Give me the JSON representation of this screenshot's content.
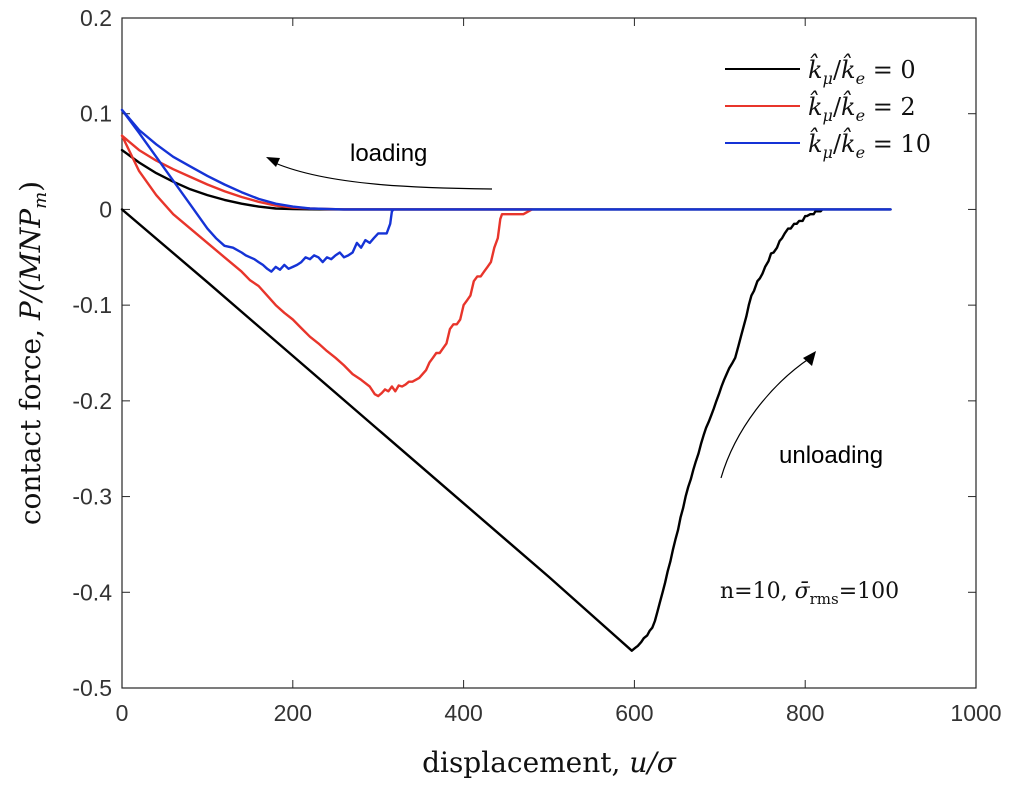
{
  "chart_data": {
    "type": "line",
    "xlabel": "displacement, u/σ",
    "ylabel": "contact force, P/(MNP_m)",
    "xlim": [
      0,
      1000
    ],
    "ylim": [
      -0.5,
      0.2
    ],
    "x_ticks": [
      0,
      200,
      400,
      600,
      800,
      1000
    ],
    "y_ticks": [
      0.2,
      0.1,
      0,
      -0.1,
      -0.2,
      -0.3,
      -0.4,
      -0.5
    ],
    "x_tick_labels": [
      "0",
      "200",
      "400",
      "600",
      "800",
      "1000"
    ],
    "y_tick_labels": [
      "0.2",
      "0.1",
      "0",
      "-0.1",
      "-0.2",
      "-0.3",
      "-0.4",
      "-0.5"
    ],
    "grid": false,
    "legend_position": "top-right",
    "series": [
      {
        "name": "k̂_μ/k̂_e = 0",
        "color": "#000000",
        "x": [
          0,
          20,
          40,
          60,
          80,
          100,
          120,
          140,
          160,
          180,
          200,
          220,
          250,
          300,
          400,
          500,
          600,
          700,
          800,
          900,
          900,
          880,
          850,
          820,
          818,
          815,
          812,
          810,
          806,
          802,
          800,
          797,
          793,
          790,
          787,
          783,
          780,
          776,
          773,
          770,
          767,
          763,
          760,
          757,
          753,
          750,
          747,
          744,
          740,
          737,
          734,
          731,
          728,
          725,
          722,
          718,
          715,
          711,
          708,
          705,
          702,
          699,
          696,
          693,
          690,
          687,
          684,
          681,
          678,
          675,
          672,
          669,
          666,
          663,
          660,
          657,
          654,
          651,
          648,
          645,
          642,
          639,
          636,
          633,
          630,
          627,
          624,
          621,
          618,
          615,
          611,
          608,
          604,
          601,
          597,
          500,
          400,
          300,
          200,
          100,
          0
        ],
        "y": [
          0.062,
          0.049,
          0.038,
          0.029,
          0.021,
          0.015,
          0.01,
          0.006,
          0.003,
          0.001,
          0.0005,
          0.0001,
          0,
          0,
          0,
          0,
          0,
          0,
          0,
          0,
          0,
          0,
          0,
          0,
          -0.002,
          -0.002,
          -0.002,
          -0.005,
          -0.005,
          -0.007,
          -0.007,
          -0.012,
          -0.012,
          -0.015,
          -0.015,
          -0.02,
          -0.02,
          -0.025,
          -0.03,
          -0.033,
          -0.04,
          -0.045,
          -0.046,
          -0.054,
          -0.06,
          -0.067,
          -0.072,
          -0.075,
          -0.085,
          -0.09,
          -0.1,
          -0.112,
          -0.122,
          -0.132,
          -0.142,
          -0.155,
          -0.16,
          -0.166,
          -0.172,
          -0.178,
          -0.185,
          -0.193,
          -0.2,
          -0.208,
          -0.215,
          -0.222,
          -0.228,
          -0.236,
          -0.245,
          -0.255,
          -0.263,
          -0.272,
          -0.282,
          -0.29,
          -0.3,
          -0.312,
          -0.322,
          -0.335,
          -0.345,
          -0.356,
          -0.368,
          -0.378,
          -0.39,
          -0.4,
          -0.41,
          -0.42,
          -0.43,
          -0.437,
          -0.44,
          -0.445,
          -0.448,
          -0.452,
          -0.456,
          -0.458,
          -0.461,
          -0.384,
          -0.307,
          -0.23,
          -0.153,
          -0.076,
          0.0
        ]
      },
      {
        "name": "k̂_μ/k̂_e = 2",
        "color": "#e8352b",
        "x": [
          0,
          20,
          40,
          60,
          80,
          100,
          120,
          140,
          160,
          180,
          200,
          220,
          260,
          300,
          400,
          480,
          480,
          470,
          460,
          450,
          445,
          443,
          440,
          436,
          432,
          428,
          424,
          420,
          416,
          412,
          408,
          404,
          400,
          396,
          392,
          388,
          384,
          380,
          376,
          372,
          368,
          364,
          360,
          356,
          352,
          348,
          344,
          340,
          336,
          332,
          328,
          324,
          320,
          316,
          312,
          308,
          304,
          300,
          296,
          290,
          280,
          270,
          260,
          250,
          240,
          230,
          220,
          210,
          200,
          190,
          180,
          170,
          160,
          150,
          140,
          120,
          100,
          80,
          60,
          40,
          20,
          0
        ],
        "y": [
          0.077,
          0.062,
          0.051,
          0.042,
          0.034,
          0.026,
          0.019,
          0.013,
          0.008,
          0.004,
          0.002,
          0.001,
          0,
          0,
          0,
          0,
          0,
          -0.005,
          -0.005,
          -0.005,
          -0.005,
          -0.01,
          -0.03,
          -0.04,
          -0.055,
          -0.06,
          -0.065,
          -0.07,
          -0.07,
          -0.075,
          -0.09,
          -0.095,
          -0.1,
          -0.115,
          -0.12,
          -0.12,
          -0.125,
          -0.14,
          -0.145,
          -0.15,
          -0.15,
          -0.155,
          -0.16,
          -0.168,
          -0.172,
          -0.176,
          -0.178,
          -0.18,
          -0.18,
          -0.183,
          -0.185,
          -0.184,
          -0.19,
          -0.185,
          -0.19,
          -0.188,
          -0.192,
          -0.195,
          -0.193,
          -0.185,
          -0.178,
          -0.172,
          -0.163,
          -0.155,
          -0.148,
          -0.14,
          -0.133,
          -0.124,
          -0.115,
          -0.108,
          -0.1,
          -0.09,
          -0.08,
          -0.074,
          -0.065,
          -0.05,
          -0.035,
          -0.02,
          -0.005,
          0.015,
          0.04,
          0.077
        ]
      },
      {
        "name": "k̂_μ/k̂_e = 10",
        "color": "#1533d6",
        "x": [
          0,
          20,
          40,
          60,
          80,
          100,
          120,
          140,
          160,
          180,
          200,
          220,
          260,
          300,
          400,
          500,
          600,
          700,
          800,
          900,
          900,
          320,
          318,
          316,
          314,
          310,
          300,
          295,
          290,
          285,
          280,
          275,
          270,
          265,
          260,
          255,
          250,
          245,
          240,
          235,
          230,
          225,
          220,
          215,
          210,
          205,
          200,
          195,
          190,
          185,
          180,
          175,
          170,
          165,
          160,
          155,
          150,
          145,
          140,
          130,
          120,
          110,
          100,
          80,
          60,
          40,
          20,
          0
        ],
        "y": [
          0.104,
          0.083,
          0.068,
          0.055,
          0.045,
          0.035,
          0.026,
          0.018,
          0.011,
          0.006,
          0.003,
          0.001,
          0,
          0,
          0,
          0,
          0,
          0,
          0,
          0,
          0,
          0,
          0,
          -0.002,
          -0.015,
          -0.025,
          -0.025,
          -0.03,
          -0.035,
          -0.032,
          -0.04,
          -0.035,
          -0.045,
          -0.048,
          -0.05,
          -0.045,
          -0.048,
          -0.052,
          -0.05,
          -0.055,
          -0.05,
          -0.048,
          -0.052,
          -0.05,
          -0.055,
          -0.058,
          -0.06,
          -0.062,
          -0.058,
          -0.063,
          -0.06,
          -0.065,
          -0.062,
          -0.058,
          -0.055,
          -0.052,
          -0.05,
          -0.048,
          -0.045,
          -0.04,
          -0.038,
          -0.03,
          -0.02,
          0.005,
          0.03,
          0.055,
          0.08,
          0.104
        ]
      }
    ],
    "annotations": {
      "loading": "loading",
      "unloading": "unloading",
      "params_prefix": "n=10, ",
      "sigma": "σ̄",
      "rms": "rms",
      "params_suffix": "=100"
    }
  },
  "legend": [
    {
      "k": "k̂",
      "mu": "μ",
      "slash": "/",
      "ke": "k̂",
      "e": "e",
      "eq": " = 0"
    },
    {
      "k": "k̂",
      "mu": "μ",
      "slash": "/",
      "ke": "k̂",
      "e": "e",
      "eq": " = 2"
    },
    {
      "k": "k̂",
      "mu": "μ",
      "slash": "/",
      "ke": "k̂",
      "e": "e",
      "eq": " = 10"
    }
  ],
  "axis_titles": {
    "x_prefix": "displacement, ",
    "x_var": "u/σ",
    "y_prefix": "contact force, ",
    "y_var": "P/(MNP",
    "y_sub": "m",
    "y_close": ")"
  }
}
